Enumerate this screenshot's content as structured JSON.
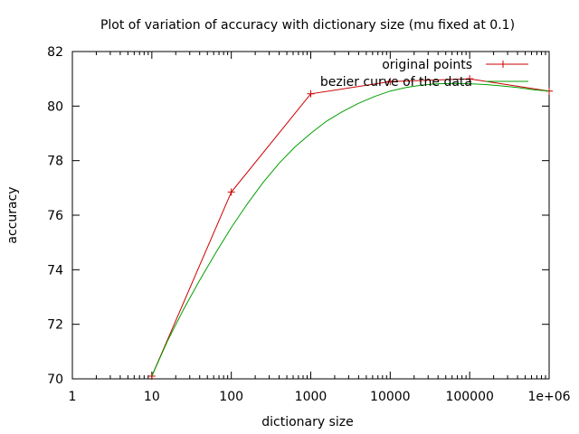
{
  "chart_data": {
    "type": "line",
    "title": "Plot of variation of accuracy with dictionary size (mu fixed at 0.1)",
    "xlabel": "dictionary size",
    "ylabel": "accuracy",
    "x_scale": "log",
    "xlim": [
      1,
      1000000
    ],
    "ylim": [
      70,
      82
    ],
    "x_ticks": [
      1,
      10,
      100,
      1000,
      10000,
      100000,
      1000000
    ],
    "x_tick_labels": [
      "1",
      "10",
      "100",
      "1000",
      "10000",
      "100000",
      "1e+06"
    ],
    "y_ticks": [
      70,
      72,
      74,
      76,
      78,
      80,
      82
    ],
    "y_tick_labels": [
      "70",
      "72",
      "74",
      "76",
      "78",
      "80",
      "82"
    ],
    "grid": false,
    "legend_position": "top-right",
    "series": [
      {
        "name": "original points",
        "color": "#cc0000",
        "marker": "plus",
        "x": [
          10,
          100,
          1000,
          10000,
          100000,
          1000000
        ],
        "y": [
          70.1,
          76.85,
          80.45,
          80.9,
          81.0,
          80.55
        ]
      },
      {
        "name": "bezier curve of the data",
        "color": "#00a000",
        "marker": "none",
        "x": [
          10,
          15.8,
          25.1,
          39.8,
          63.1,
          100,
          158,
          251,
          398,
          631,
          1000,
          1585,
          2512,
          3981,
          6310,
          10000,
          15849,
          25119,
          39811,
          63096,
          100000,
          158489,
          251189,
          398107,
          630957,
          1000000
        ],
        "y": [
          70.1,
          71.4,
          72.55,
          73.6,
          74.6,
          75.55,
          76.4,
          77.2,
          77.9,
          78.5,
          79.0,
          79.45,
          79.8,
          80.1,
          80.35,
          80.55,
          80.68,
          80.77,
          80.82,
          80.83,
          80.82,
          80.79,
          80.74,
          80.68,
          80.6,
          80.55
        ]
      }
    ]
  }
}
